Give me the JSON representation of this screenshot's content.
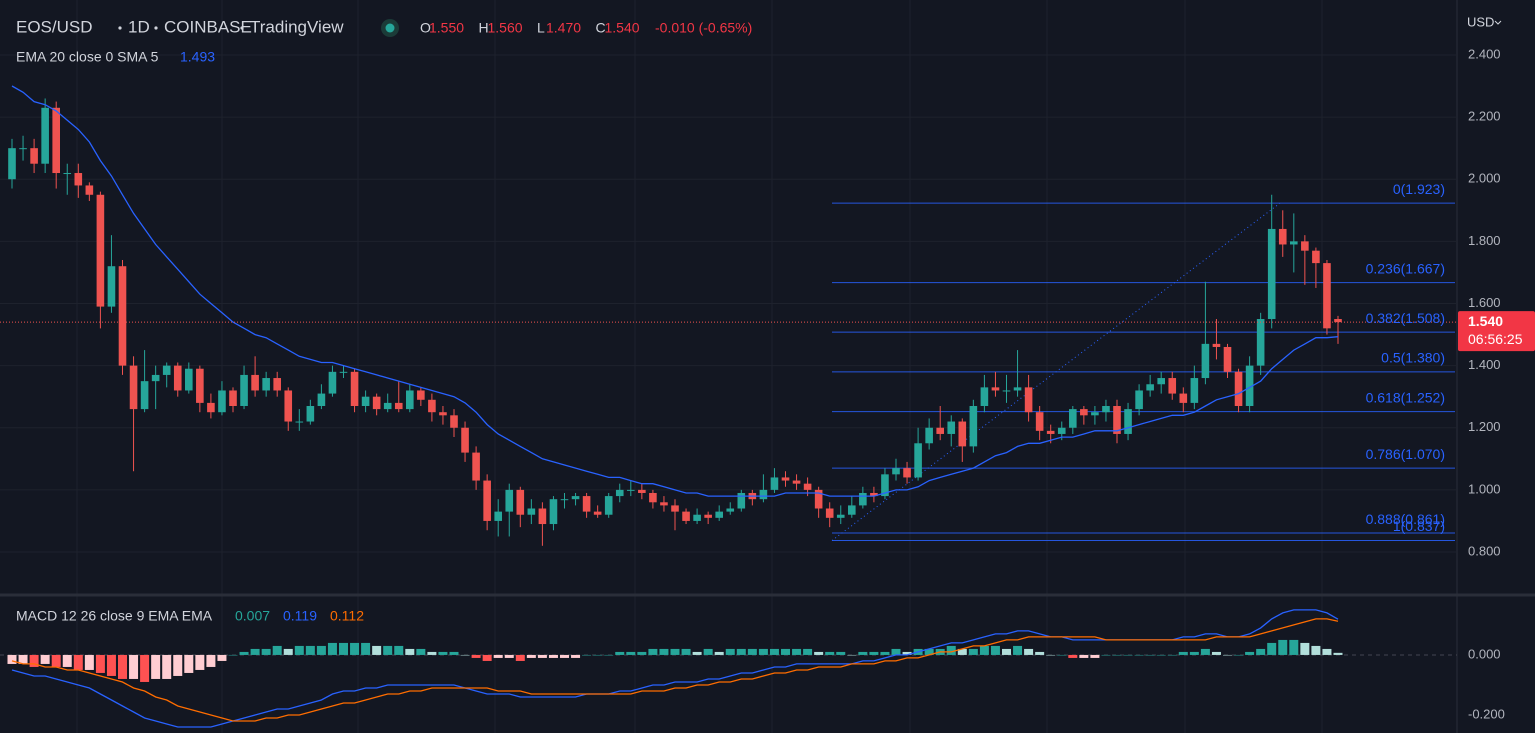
{
  "chart_data": [
    {
      "type": "candlestick",
      "symbol": "EOS/USD",
      "interval": "1D",
      "exchange": "COINBASE",
      "source": "TradingView",
      "ohlc": [
        {
          "key": "O",
          "value": 1.55,
          "label": "1.550"
        },
        {
          "key": "H",
          "value": 1.56,
          "label": "1.560"
        },
        {
          "key": "L",
          "value": 1.47,
          "label": "1.470"
        },
        {
          "key": "C",
          "value": 1.54,
          "label": "1.540"
        }
      ],
      "change": "-0.010 (-0.65%)",
      "currency": "USD",
      "last_price": {
        "value": 1.54,
        "label": "1.540"
      },
      "countdown": "06:56:25",
      "up_color": "#26a69a",
      "down_color": "#ef5350",
      "ylim": [
        0.668,
        2.577
      ],
      "yticks": [
        {
          "value": 2.4,
          "label": "2.400"
        },
        {
          "value": 2.2,
          "label": "2.200"
        },
        {
          "value": 2.0,
          "label": "2.000"
        },
        {
          "value": 1.8,
          "label": "1.800"
        },
        {
          "value": 1.6,
          "label": "1.600"
        },
        {
          "value": 1.4,
          "label": "1.400"
        },
        {
          "value": 1.2,
          "label": "1.200"
        },
        {
          "value": 1.0,
          "label": "1.000"
        },
        {
          "value": 0.8,
          "label": "0.800"
        }
      ],
      "grid": true,
      "open": [
        2.0,
        2.1,
        2.1,
        2.05,
        2.23,
        2.02,
        2.02,
        1.98,
        1.95,
        1.59,
        1.72,
        1.4,
        1.26,
        1.35,
        1.37,
        1.4,
        1.32,
        1.39,
        1.28,
        1.25,
        1.32,
        1.27,
        1.37,
        1.32,
        1.36,
        1.32,
        1.22,
        1.22,
        1.27,
        1.31,
        1.38,
        1.38,
        1.27,
        1.3,
        1.26,
        1.28,
        1.26,
        1.32,
        1.29,
        1.25,
        1.24,
        1.2,
        1.12,
        1.03,
        0.9,
        0.93,
        1.0,
        0.92,
        0.94,
        0.89,
        0.97,
        0.97,
        0.98,
        0.93,
        0.92,
        0.98,
        1.0,
        1.0,
        0.99,
        0.96,
        0.95,
        0.93,
        0.9,
        0.92,
        0.91,
        0.93,
        0.94,
        0.99,
        0.97,
        1.0,
        1.04,
        1.03,
        1.02,
        1.0,
        0.94,
        0.91,
        0.92,
        0.95,
        0.99,
        0.98,
        1.05,
        1.07,
        1.04,
        1.15,
        1.2,
        1.18,
        1.22,
        1.14,
        1.27,
        1.33,
        1.32,
        1.32,
        1.33,
        1.25,
        1.19,
        1.18,
        1.2,
        1.26,
        1.24,
        1.25,
        1.27,
        1.18,
        1.26,
        1.32,
        1.34,
        1.36,
        1.31,
        1.28,
        1.36,
        1.47,
        1.46,
        1.38,
        1.27,
        1.4,
        1.55,
        1.84,
        1.79,
        1.8,
        1.77,
        1.73,
        1.55
      ],
      "high": [
        2.13,
        2.14,
        2.13,
        2.26,
        2.25,
        2.05,
        2.05,
        1.99,
        1.96,
        1.82,
        1.74,
        1.43,
        1.45,
        1.4,
        1.41,
        1.41,
        1.41,
        1.4,
        1.31,
        1.35,
        1.33,
        1.4,
        1.43,
        1.38,
        1.38,
        1.33,
        1.26,
        1.29,
        1.34,
        1.4,
        1.4,
        1.39,
        1.32,
        1.31,
        1.31,
        1.35,
        1.34,
        1.33,
        1.31,
        1.27,
        1.26,
        1.22,
        1.14,
        1.05,
        0.97,
        1.02,
        1.01,
        0.97,
        0.96,
        0.98,
        0.99,
        0.99,
        0.99,
        0.95,
        0.99,
        1.02,
        1.03,
        1.02,
        1.0,
        0.98,
        0.97,
        0.94,
        0.94,
        0.93,
        0.95,
        0.96,
        1.0,
        1.0,
        1.05,
        1.07,
        1.06,
        1.05,
        1.04,
        1.01,
        0.96,
        0.95,
        0.98,
        1.01,
        1.01,
        1.07,
        1.1,
        1.09,
        1.2,
        1.23,
        1.27,
        1.24,
        1.23,
        1.29,
        1.37,
        1.38,
        1.37,
        1.45,
        1.37,
        1.27,
        1.21,
        1.22,
        1.27,
        1.27,
        1.27,
        1.29,
        1.29,
        1.28,
        1.34,
        1.37,
        1.38,
        1.38,
        1.33,
        1.4,
        1.67,
        1.55,
        1.47,
        1.39,
        1.43,
        1.57,
        1.95,
        1.9,
        1.89,
        1.82,
        1.78,
        1.74,
        1.56
      ],
      "low": [
        1.97,
        2.06,
        2.02,
        2.02,
        1.97,
        1.95,
        1.94,
        1.93,
        1.52,
        1.57,
        1.37,
        1.06,
        1.25,
        1.26,
        1.33,
        1.3,
        1.31,
        1.25,
        1.23,
        1.24,
        1.25,
        1.26,
        1.3,
        1.3,
        1.3,
        1.19,
        1.19,
        1.21,
        1.26,
        1.3,
        1.36,
        1.25,
        1.25,
        1.24,
        1.25,
        1.25,
        1.25,
        1.27,
        1.22,
        1.21,
        1.17,
        1.09,
        1.0,
        0.87,
        0.85,
        0.85,
        0.88,
        0.89,
        0.82,
        0.87,
        0.94,
        0.95,
        0.91,
        0.91,
        0.91,
        0.96,
        0.98,
        0.97,
        0.94,
        0.93,
        0.87,
        0.89,
        0.89,
        0.89,
        0.9,
        0.92,
        0.93,
        0.95,
        0.96,
        0.99,
        1.01,
        1.0,
        0.98,
        0.91,
        0.88,
        0.89,
        0.91,
        0.94,
        0.96,
        0.97,
        1.03,
        1.02,
        1.03,
        1.13,
        1.16,
        1.14,
        1.09,
        1.12,
        1.25,
        1.3,
        1.28,
        1.3,
        1.22,
        1.16,
        1.15,
        1.16,
        1.18,
        1.21,
        1.21,
        1.22,
        1.15,
        1.16,
        1.24,
        1.3,
        1.31,
        1.29,
        1.25,
        1.26,
        1.34,
        1.42,
        1.36,
        1.25,
        1.25,
        1.37,
        1.52,
        1.75,
        1.7,
        1.66,
        1.65,
        1.5,
        1.47
      ],
      "close": [
        2.1,
        2.1,
        2.05,
        2.23,
        2.02,
        2.02,
        1.98,
        1.95,
        1.59,
        1.72,
        1.4,
        1.26,
        1.35,
        1.37,
        1.4,
        1.32,
        1.39,
        1.28,
        1.25,
        1.32,
        1.27,
        1.37,
        1.32,
        1.36,
        1.32,
        1.22,
        1.22,
        1.27,
        1.31,
        1.38,
        1.38,
        1.27,
        1.3,
        1.26,
        1.28,
        1.26,
        1.32,
        1.29,
        1.25,
        1.24,
        1.2,
        1.12,
        1.03,
        0.9,
        0.93,
        1.0,
        0.92,
        0.94,
        0.89,
        0.97,
        0.97,
        0.98,
        0.93,
        0.92,
        0.98,
        1.0,
        1.0,
        0.99,
        0.96,
        0.95,
        0.93,
        0.9,
        0.92,
        0.91,
        0.93,
        0.94,
        0.99,
        0.97,
        1.0,
        1.04,
        1.03,
        1.02,
        1.0,
        0.94,
        0.91,
        0.92,
        0.95,
        0.99,
        0.98,
        1.05,
        1.07,
        1.04,
        1.15,
        1.2,
        1.18,
        1.22,
        1.14,
        1.27,
        1.33,
        1.32,
        1.32,
        1.33,
        1.25,
        1.19,
        1.18,
        1.2,
        1.26,
        1.24,
        1.25,
        1.27,
        1.18,
        1.26,
        1.32,
        1.34,
        1.36,
        1.31,
        1.28,
        1.36,
        1.47,
        1.46,
        1.38,
        1.27,
        1.4,
        1.55,
        1.84,
        1.79,
        1.8,
        1.77,
        1.73,
        1.52,
        1.54
      ],
      "ema": {
        "name": "EMA 20 close 0 SMA 5",
        "color": "#2962ff",
        "values": [
          2.3,
          2.28,
          2.25,
          2.24,
          2.22,
          2.19,
          2.16,
          2.12,
          2.06,
          2.01,
          1.95,
          1.89,
          1.84,
          1.79,
          1.75,
          1.71,
          1.67,
          1.63,
          1.6,
          1.57,
          1.54,
          1.52,
          1.5,
          1.49,
          1.47,
          1.45,
          1.43,
          1.42,
          1.41,
          1.41,
          1.4,
          1.39,
          1.38,
          1.37,
          1.36,
          1.35,
          1.34,
          1.33,
          1.32,
          1.31,
          1.3,
          1.28,
          1.25,
          1.21,
          1.18,
          1.16,
          1.14,
          1.12,
          1.1,
          1.09,
          1.08,
          1.07,
          1.06,
          1.05,
          1.04,
          1.04,
          1.03,
          1.02,
          1.02,
          1.01,
          1.0,
          0.99,
          0.99,
          0.98,
          0.98,
          0.98,
          0.98,
          0.98,
          0.98,
          0.98,
          0.99,
          0.99,
          0.99,
          0.99,
          0.98,
          0.98,
          0.98,
          0.98,
          0.98,
          0.99,
          1.0,
          1.0,
          1.01,
          1.03,
          1.04,
          1.05,
          1.06,
          1.07,
          1.09,
          1.11,
          1.12,
          1.14,
          1.15,
          1.15,
          1.16,
          1.17,
          1.17,
          1.18,
          1.19,
          1.19,
          1.19,
          1.2,
          1.21,
          1.22,
          1.23,
          1.24,
          1.24,
          1.25,
          1.27,
          1.29,
          1.3,
          1.31,
          1.33,
          1.35,
          1.39,
          1.42,
          1.45,
          1.47,
          1.49,
          1.49,
          1.493
        ]
      },
      "fib_color": "#2962ff",
      "fib_levels": [
        {
          "value": 1.923,
          "label": "0(1.923)"
        },
        {
          "value": 1.667,
          "label": "0.236(1.667)"
        },
        {
          "value": 1.508,
          "label": "0.382(1.508)"
        },
        {
          "value": 1.38,
          "label": "0.5(1.380)"
        },
        {
          "value": 1.252,
          "label": "0.618(1.252)"
        },
        {
          "value": 1.07,
          "label": "0.786(1.070)"
        },
        {
          "value": 0.861,
          "label": "0.888(0.861)"
        },
        {
          "value": 0.837,
          "label": "1(0.837)"
        }
      ]
    },
    {
      "type": "macd",
      "title": "MACD 12 26 close 9 EMA EMA",
      "ylim": [
        -0.26,
        0.193
      ],
      "yticks": [
        {
          "value": 0,
          "label": "0.000"
        },
        {
          "value": -0.2,
          "label": "-0.200"
        }
      ],
      "histogram_colors": [
        "#26a69a",
        "#b2dfdb",
        "#ffcdd2",
        "#ff5252"
      ],
      "histogram": [
        -0.03,
        -0.03,
        -0.04,
        -0.03,
        -0.04,
        -0.04,
        -0.05,
        -0.05,
        -0.06,
        -0.07,
        -0.08,
        -0.08,
        -0.09,
        -0.08,
        -0.08,
        -0.07,
        -0.06,
        -0.05,
        -0.04,
        -0.02,
        0.0,
        0.01,
        0.02,
        0.02,
        0.03,
        0.02,
        0.03,
        0.03,
        0.03,
        0.04,
        0.04,
        0.04,
        0.04,
        0.03,
        0.03,
        0.03,
        0.02,
        0.02,
        0.01,
        0.01,
        0.01,
        0.0,
        -0.01,
        -0.02,
        -0.01,
        -0.01,
        -0.02,
        -0.01,
        -0.01,
        -0.01,
        -0.01,
        -0.01,
        0.0,
        0.0,
        0.0,
        0.01,
        0.01,
        0.01,
        0.02,
        0.02,
        0.02,
        0.02,
        0.01,
        0.02,
        0.01,
        0.02,
        0.02,
        0.02,
        0.02,
        0.02,
        0.02,
        0.02,
        0.02,
        0.01,
        0.01,
        0.01,
        0.0,
        0.01,
        0.01,
        0.01,
        0.02,
        0.01,
        0.02,
        0.02,
        0.02,
        0.03,
        0.02,
        0.02,
        0.03,
        0.03,
        0.02,
        0.03,
        0.02,
        0.01,
        0.0,
        0.0,
        -0.01,
        -0.01,
        -0.01,
        0.0,
        0.0,
        0.0,
        0.0,
        0.0,
        0.0,
        0.0,
        0.01,
        0.01,
        0.02,
        0.01,
        0.0,
        0.0,
        0.01,
        0.02,
        0.04,
        0.05,
        0.05,
        0.04,
        0.03,
        0.02,
        0.007
      ],
      "series": [
        {
          "name": "MACD",
          "color": "#2962ff",
          "values": [
            -0.05,
            -0.06,
            -0.07,
            -0.07,
            -0.08,
            -0.09,
            -0.1,
            -0.11,
            -0.13,
            -0.15,
            -0.17,
            -0.19,
            -0.21,
            -0.22,
            -0.23,
            -0.24,
            -0.24,
            -0.24,
            -0.24,
            -0.23,
            -0.22,
            -0.21,
            -0.2,
            -0.19,
            -0.18,
            -0.18,
            -0.17,
            -0.16,
            -0.15,
            -0.13,
            -0.12,
            -0.12,
            -0.11,
            -0.11,
            -0.1,
            -0.1,
            -0.1,
            -0.1,
            -0.1,
            -0.1,
            -0.1,
            -0.11,
            -0.12,
            -0.13,
            -0.13,
            -0.13,
            -0.14,
            -0.14,
            -0.14,
            -0.14,
            -0.14,
            -0.14,
            -0.13,
            -0.13,
            -0.13,
            -0.12,
            -0.12,
            -0.11,
            -0.1,
            -0.1,
            -0.09,
            -0.09,
            -0.09,
            -0.08,
            -0.08,
            -0.07,
            -0.06,
            -0.06,
            -0.05,
            -0.04,
            -0.04,
            -0.03,
            -0.03,
            -0.03,
            -0.03,
            -0.03,
            -0.03,
            -0.02,
            -0.02,
            -0.01,
            0.0,
            0.0,
            0.01,
            0.02,
            0.03,
            0.04,
            0.04,
            0.05,
            0.06,
            0.07,
            0.07,
            0.08,
            0.08,
            0.07,
            0.06,
            0.06,
            0.05,
            0.05,
            0.05,
            0.05,
            0.05,
            0.05,
            0.05,
            0.05,
            0.05,
            0.05,
            0.06,
            0.06,
            0.07,
            0.07,
            0.06,
            0.06,
            0.07,
            0.09,
            0.12,
            0.14,
            0.15,
            0.15,
            0.15,
            0.14,
            0.119
          ]
        },
        {
          "name": "Signal",
          "color": "#ff6d00",
          "values": [
            -0.02,
            -0.03,
            -0.03,
            -0.04,
            -0.04,
            -0.05,
            -0.05,
            -0.06,
            -0.07,
            -0.08,
            -0.09,
            -0.11,
            -0.12,
            -0.14,
            -0.15,
            -0.17,
            -0.18,
            -0.19,
            -0.2,
            -0.21,
            -0.22,
            -0.22,
            -0.22,
            -0.21,
            -0.21,
            -0.2,
            -0.2,
            -0.19,
            -0.18,
            -0.17,
            -0.16,
            -0.16,
            -0.15,
            -0.14,
            -0.13,
            -0.13,
            -0.12,
            -0.12,
            -0.11,
            -0.11,
            -0.11,
            -0.11,
            -0.11,
            -0.11,
            -0.12,
            -0.12,
            -0.12,
            -0.13,
            -0.13,
            -0.13,
            -0.13,
            -0.13,
            -0.13,
            -0.13,
            -0.13,
            -0.13,
            -0.13,
            -0.12,
            -0.12,
            -0.12,
            -0.11,
            -0.11,
            -0.1,
            -0.1,
            -0.09,
            -0.09,
            -0.08,
            -0.08,
            -0.07,
            -0.06,
            -0.06,
            -0.05,
            -0.05,
            -0.04,
            -0.04,
            -0.04,
            -0.03,
            -0.03,
            -0.03,
            -0.02,
            -0.02,
            -0.01,
            -0.01,
            0.0,
            0.01,
            0.01,
            0.02,
            0.03,
            0.03,
            0.04,
            0.05,
            0.05,
            0.06,
            0.06,
            0.06,
            0.06,
            0.06,
            0.06,
            0.06,
            0.05,
            0.05,
            0.05,
            0.05,
            0.05,
            0.05,
            0.05,
            0.05,
            0.05,
            0.05,
            0.06,
            0.06,
            0.06,
            0.06,
            0.07,
            0.08,
            0.09,
            0.1,
            0.11,
            0.12,
            0.12,
            0.112
          ]
        }
      ]
    }
  ]
}
